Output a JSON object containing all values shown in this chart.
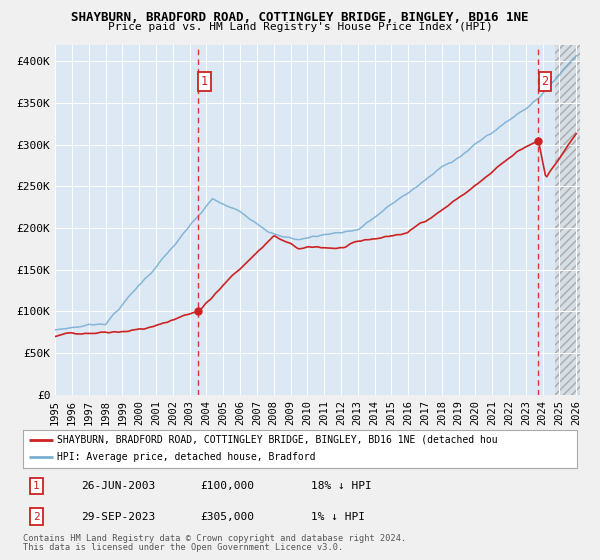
{
  "title1": "SHAYBURN, BRADFORD ROAD, COTTINGLEY BRIDGE, BINGLEY, BD16 1NE",
  "title2": "Price paid vs. HM Land Registry's House Price Index (HPI)",
  "bg_color": "#eef4fb",
  "plot_bg_color": "#dce9f5",
  "hpi_color": "#7bafd4",
  "price_color": "#cc2222",
  "dashed_line_color": "#dd3333",
  "marker_color": "#cc2222",
  "ylim": [
    0,
    420000
  ],
  "xlim_start": 1995.0,
  "xlim_end": 2026.2,
  "transaction1_x": 2003.49,
  "transaction1_y": 100000,
  "transaction1_label": "1",
  "transaction2_x": 2023.75,
  "transaction2_y": 305000,
  "transaction2_label": "2",
  "legend_red_label": "SHAYBURN, BRADFORD ROAD, COTTINGLEY BRIDGE, BINGLEY, BD16 1NE (detached hou",
  "legend_blue_label": "HPI: Average price, detached house, Bradford",
  "table_row1": [
    "1",
    "26-JUN-2003",
    "£100,000",
    "18% ↓ HPI"
  ],
  "table_row2": [
    "2",
    "29-SEP-2023",
    "£305,000",
    "1% ↓ HPI"
  ],
  "footer1": "Contains HM Land Registry data © Crown copyright and database right 2024.",
  "footer2": "This data is licensed under the Open Government Licence v3.0.",
  "grid_color": "#ffffff",
  "future_start": 2024.75
}
